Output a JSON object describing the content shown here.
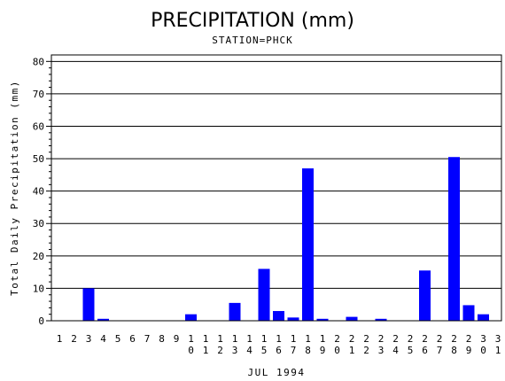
{
  "chart_data": {
    "type": "bar",
    "title": "PRECIPITATION (mm)",
    "subtitle": "STATION=PHCK",
    "xlabel": "JUL 1994",
    "ylabel": "Total Daily Precipitation (mm)",
    "ylim": [
      0,
      82
    ],
    "yticks": [
      0,
      10,
      20,
      30,
      40,
      50,
      60,
      70,
      80
    ],
    "grid": true,
    "bar_color": "#0000ff",
    "categories": [
      "1",
      "2",
      "3",
      "4",
      "5",
      "6",
      "7",
      "8",
      "9",
      "10",
      "11",
      "12",
      "13",
      "14",
      "15",
      "16",
      "17",
      "18",
      "19",
      "20",
      "21",
      "22",
      "23",
      "24",
      "25",
      "26",
      "27",
      "28",
      "29",
      "30",
      "31"
    ],
    "values": [
      0,
      0,
      10,
      0.6,
      0,
      0,
      0,
      0,
      0,
      2,
      0,
      0,
      5.5,
      0,
      16,
      3,
      1,
      47,
      0.6,
      0,
      1.2,
      0,
      0.6,
      0,
      0,
      15.5,
      0,
      50.5,
      4.8,
      2,
      0
    ]
  }
}
